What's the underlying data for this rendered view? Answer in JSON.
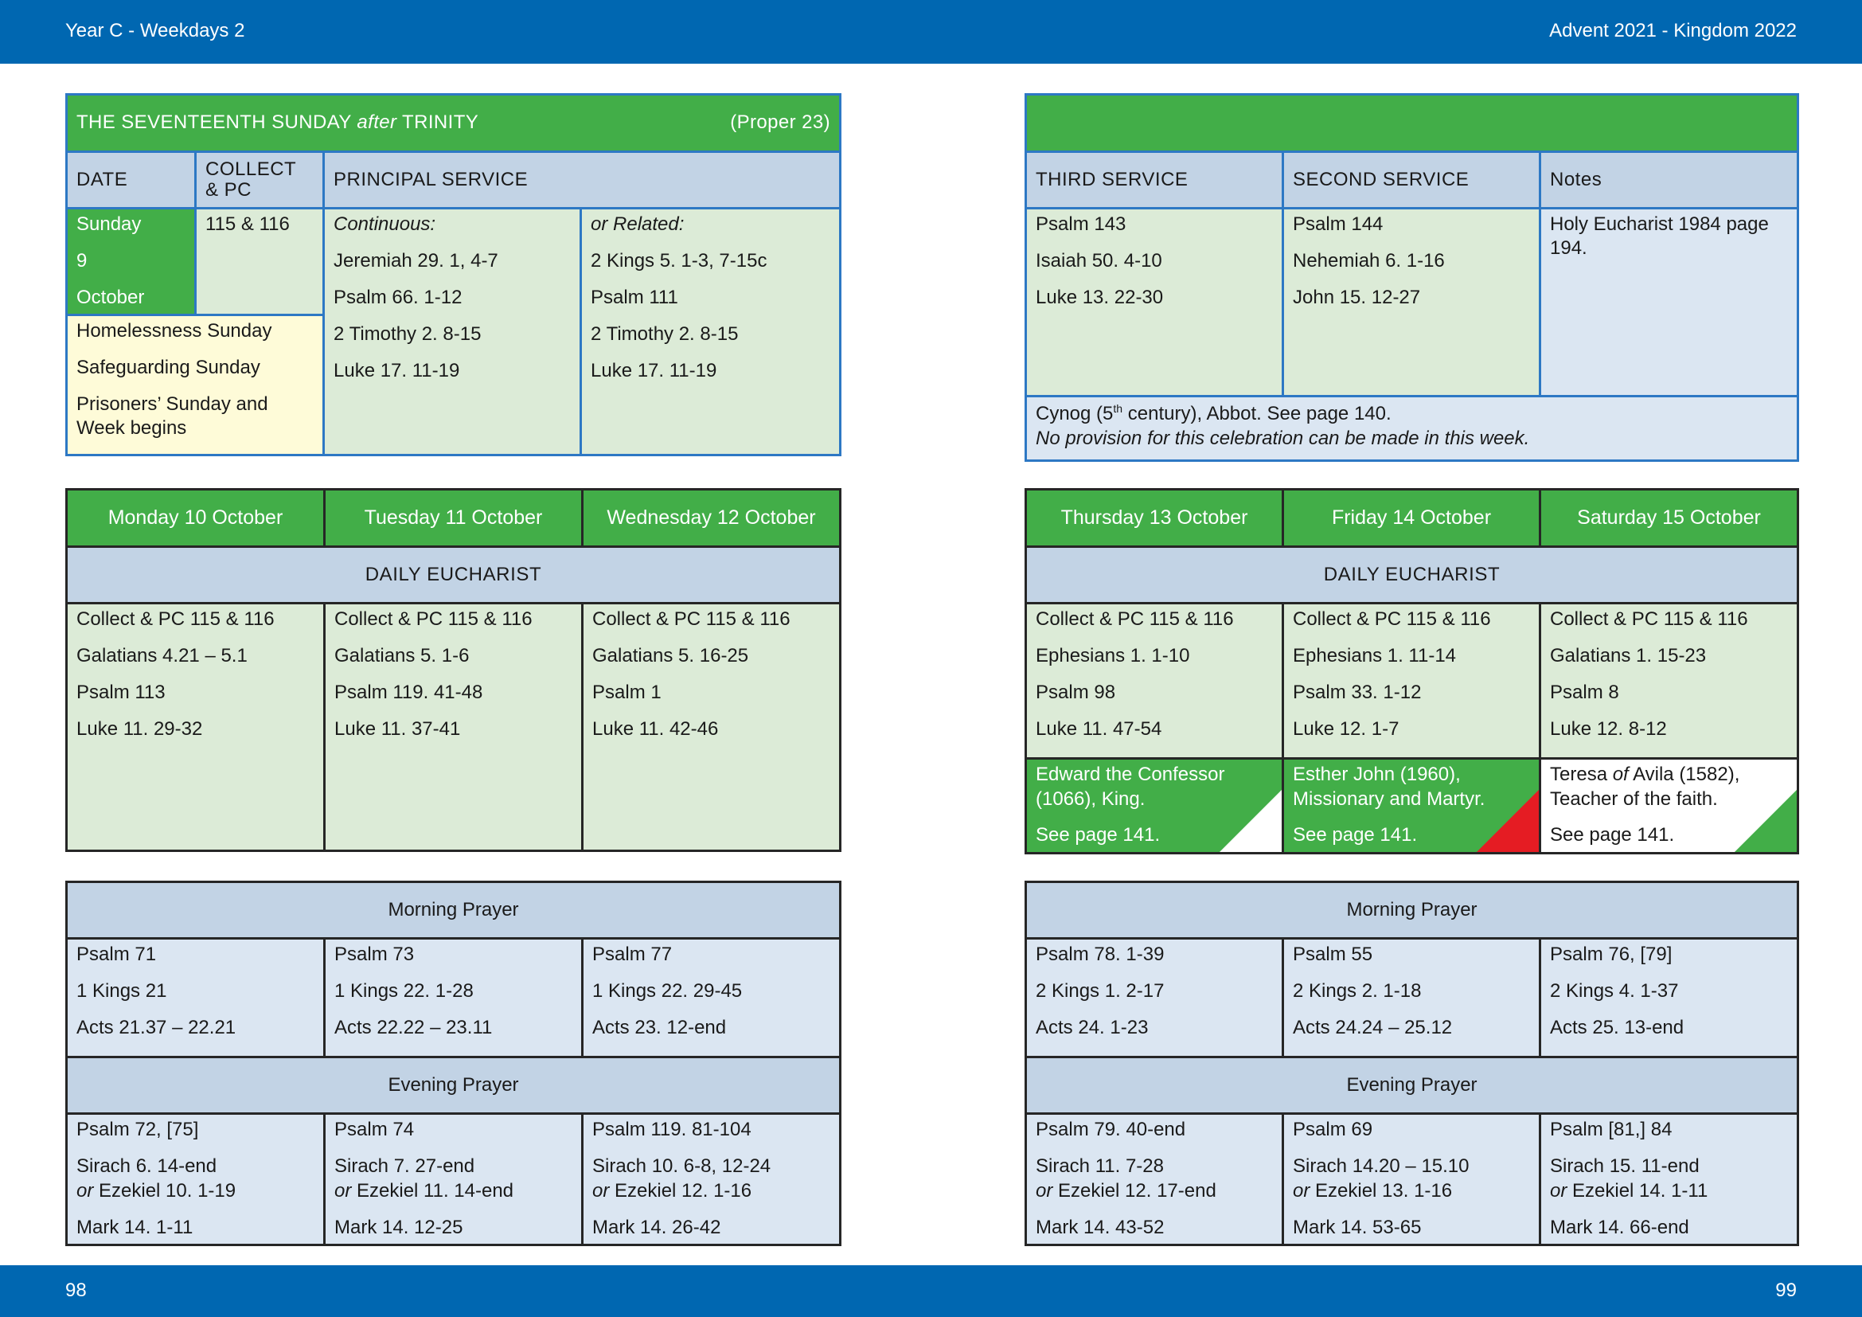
{
  "header": {
    "left": "Year C - Weekdays 2",
    "right": "Advent  2021 - Kingdom 2022"
  },
  "footer": {
    "left_page": "98",
    "right_page": "99"
  },
  "sunday": {
    "title_pre": "THE SEVENTEENTH SUNDAY ",
    "title_italic": "after",
    "title_post": " TRINITY",
    "proper": "(Proper 23)",
    "col_date": "DATE",
    "col_collect": "COLLECT & PC",
    "col_principal": "PRINCIPAL SERVICE",
    "date_lines": [
      "Sunday",
      "9",
      "October"
    ],
    "collect": "115 & 116",
    "observances": [
      "Homelessness Sunday",
      "Safeguarding Sunday",
      "Prisoners’ Sunday and Week begins"
    ],
    "continuous": [
      "Continuous:",
      "Jeremiah 29. 1, 4-7",
      "Psalm 66. 1-12",
      "2 Timothy 2. 8-15",
      "Luke 17. 11-19"
    ],
    "related": [
      "or Related:",
      "2 Kings 5. 1-3, 7-15c",
      "Psalm 111",
      "2 Timothy 2. 8-15",
      "Luke 17. 11-19"
    ],
    "col_third": "THIRD SERVICE",
    "col_second": "SECOND SERVICE",
    "col_notes": "Notes",
    "third": [
      "Psalm 143",
      "Isaiah 50. 4-10",
      "Luke 13. 22-30"
    ],
    "second": [
      "Psalm 144",
      "Nehemiah 6. 1-16",
      "John 15. 12-27"
    ],
    "notes": "Holy Eucharist 1984 page 194.",
    "cynog_pre": "Cynog (5",
    "cynog_sup": "th",
    "cynog_post": " century), Abbot. See page 140.",
    "cynog_note": "No provision for this celebration can be made in this week."
  },
  "labels": {
    "daily_eucharist": "DAILY EUCHARIST",
    "morning_prayer": "Morning Prayer",
    "evening_prayer": "Evening Prayer"
  },
  "left_days": [
    {
      "day": "Monday 10 October",
      "eucharist": [
        "Collect & PC 115 & 116",
        "Galatians 4.21 – 5.1",
        "Psalm 113",
        "Luke 11. 29-32"
      ],
      "morning": [
        "Psalm 71",
        "1 Kings 21",
        "Acts 21.37 – 22.21"
      ],
      "evening_psalm": "Psalm 72, [75]",
      "evening_ot": "Sirach 6. 14-end",
      "evening_alt": "Ezekiel 10. 1-19",
      "evening_nt": "Mark 14. 1-11"
    },
    {
      "day": "Tuesday 11 October",
      "eucharist": [
        "Collect & PC 115 & 116",
        "Galatians 5. 1-6",
        "Psalm 119. 41-48",
        "Luke 11. 37-41"
      ],
      "morning": [
        "Psalm 73",
        "1 Kings 22. 1-28",
        "Acts 22.22 – 23.11"
      ],
      "evening_psalm": "Psalm 74",
      "evening_ot": "Sirach 7. 27-end",
      "evening_alt": "Ezekiel 11. 14-end",
      "evening_nt": "Mark 14. 12-25"
    },
    {
      "day": "Wednesday 12 October",
      "eucharist": [
        "Collect & PC 115 & 116",
        "Galatians 5. 16-25",
        "Psalm 1",
        "Luke 11. 42-46"
      ],
      "morning": [
        "Psalm 77",
        "1 Kings 22. 29-45",
        "Acts 23. 12-end"
      ],
      "evening_psalm": "Psalm 119. 81-104",
      "evening_ot": "Sirach 10. 6-8, 12-24",
      "evening_alt": "Ezekiel 12. 1-16",
      "evening_nt": "Mark 14. 26-42"
    }
  ],
  "right_days": [
    {
      "day": "Thursday 13 October",
      "eucharist": [
        "Collect & PC 115 & 116",
        "Ephesians 1. 1-10",
        "Psalm 98",
        "Luke 11. 47-54"
      ],
      "saint_lines": [
        "Edward the Confessor",
        "(1066), King."
      ],
      "saint_page": "See page 141.",
      "morning": [
        "Psalm 78. 1-39",
        "2 Kings 1. 2-17",
        "Acts 24. 1-23"
      ],
      "evening_psalm": "Psalm 79. 40-end",
      "evening_ot": "Sirach 11. 7-28",
      "evening_alt": "Ezekiel 12. 17-end",
      "evening_nt": "Mark 14. 43-52"
    },
    {
      "day": "Friday 14 October",
      "eucharist": [
        "Collect & PC 115 & 116",
        "Ephesians 1. 11-14",
        "Psalm 33. 1-12",
        "Luke 12. 1-7"
      ],
      "saint_lines": [
        "Esther John (1960),",
        "Missionary and Martyr."
      ],
      "saint_page": "See page 141.",
      "morning": [
        "Psalm 55",
        "2 Kings 2. 1-18",
        "Acts 24.24 – 25.12"
      ],
      "evening_psalm": "Psalm 69",
      "evening_ot": "Sirach 14.20 – 15.10",
      "evening_alt": "Ezekiel 13. 1-16",
      "evening_nt": "Mark 14. 53-65"
    },
    {
      "day": "Saturday 15 October",
      "eucharist": [
        "Collect & PC 115 & 116",
        "Galatians 1. 15-23",
        "Psalm 8",
        "Luke 12. 8-12"
      ],
      "saint_name": "Teresa ",
      "saint_of": "of",
      "saint_rest": " Avila (1582),",
      "saint_line2": "Teacher of the faith.",
      "saint_page": "See page 141.",
      "morning": [
        "Psalm 76, [79]",
        "2 Kings 4. 1-37",
        "Acts 25. 13-end"
      ],
      "evening_psalm": "Psalm [81,] 84",
      "evening_ot": "Sirach 15. 11-end",
      "evening_alt": "Ezekiel 14. 1-11",
      "evening_nt": "Mark 14. 66-end"
    }
  ],
  "or_word": "or",
  "colors": {
    "band_blue": "#0067b1",
    "green": "#42ae48",
    "light_green": "#dcebd7",
    "light_blue": "#dbe6f2",
    "header_blue": "#c2d3e5",
    "cream": "#fefbd8",
    "martyr_red": "#e51c23"
  }
}
